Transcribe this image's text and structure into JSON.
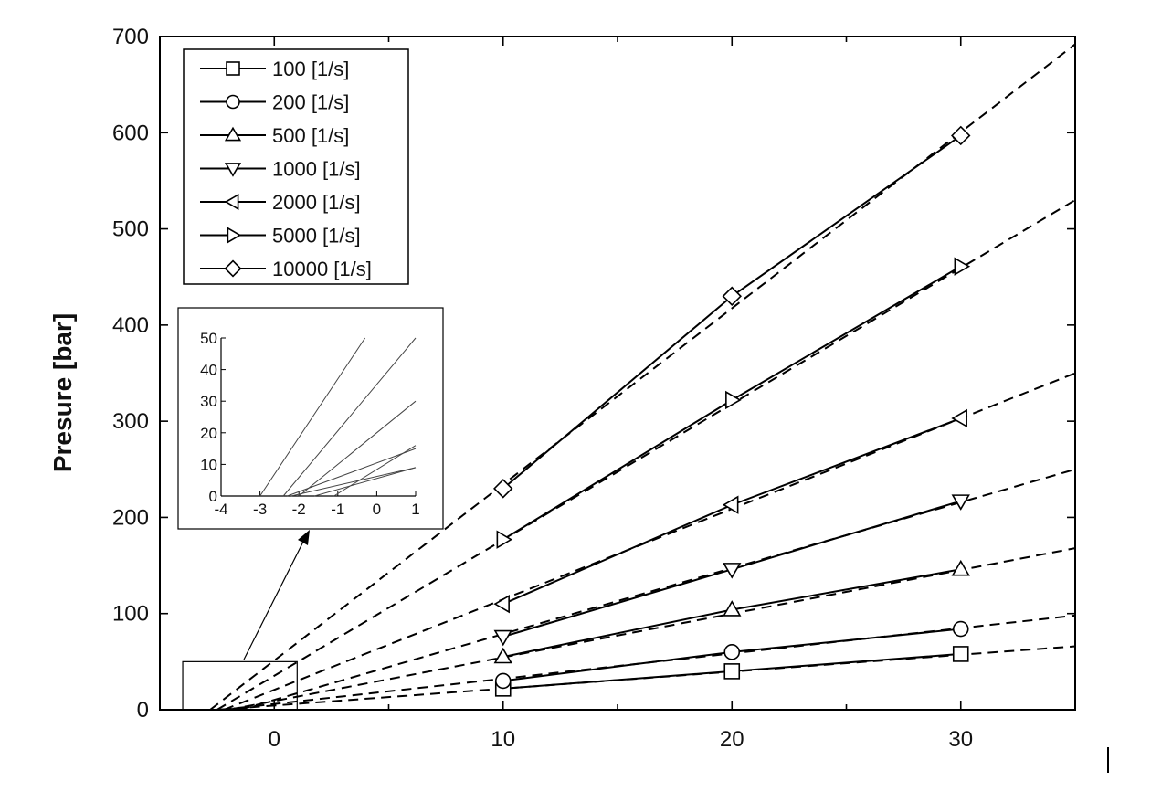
{
  "chart_data": [
    {
      "type": "line",
      "title": "",
      "xlabel": "",
      "ylabel": "Presure [bar]",
      "xlim": [
        -5,
        35
      ],
      "ylim": [
        0,
        700
      ],
      "xticks": [
        0,
        10,
        20,
        30
      ],
      "yticks": [
        0,
        100,
        200,
        300,
        400,
        500,
        600,
        700
      ],
      "x": [
        10,
        20,
        30
      ],
      "grid": false,
      "legend_position": "top-left",
      "series": [
        {
          "name": "100 [1/s]",
          "marker": "square",
          "values": [
            22,
            40,
            58
          ],
          "fit": {
            "x": [
              -2.5,
              35
            ],
            "y": [
              0,
              66
            ]
          }
        },
        {
          "name": "200 [1/s]",
          "marker": "circle",
          "values": [
            30,
            60,
            84
          ],
          "fit": {
            "x": [
              -2.3,
              35
            ],
            "y": [
              0,
              98
            ]
          }
        },
        {
          "name": "500 [1/s]",
          "marker": "triangle-up",
          "values": [
            55,
            104,
            146
          ],
          "fit": {
            "x": [
              -2.0,
              35
            ],
            "y": [
              0,
              168
            ]
          }
        },
        {
          "name": "1000 [1/s]",
          "marker": "triangle-down",
          "values": [
            76,
            146,
            217
          ],
          "fit": {
            "x": [
              -1.5,
              35
            ],
            "y": [
              0,
              250
            ]
          }
        },
        {
          "name": "2000 [1/s]",
          "marker": "triangle-left",
          "values": [
            110,
            213,
            303
          ],
          "fit": {
            "x": [
              -2.2,
              35
            ],
            "y": [
              0,
              350
            ]
          }
        },
        {
          "name": "5000 [1/s]",
          "marker": "triangle-right",
          "values": [
            177,
            322,
            461
          ],
          "fit": {
            "x": [
              -2.5,
              35
            ],
            "y": [
              0,
              530
            ]
          }
        },
        {
          "name": "10000 [1/s]",
          "marker": "diamond",
          "values": [
            230,
            430,
            597
          ],
          "fit": {
            "x": [
              -2.8,
              35
            ],
            "y": [
              0,
              692
            ]
          }
        }
      ]
    },
    {
      "type": "line",
      "title": "",
      "xlim": [
        -4,
        1
      ],
      "ylim": [
        0,
        50
      ],
      "xticks": [
        -4,
        -3,
        -2,
        -1,
        0,
        1
      ],
      "yticks": [
        0,
        10,
        20,
        30,
        40,
        50
      ],
      "zoom_region": {
        "x": [
          -4,
          1
        ],
        "y": [
          0,
          50
        ]
      },
      "lines": [
        {
          "x": [
            -3.0,
            -0.3
          ],
          "y": [
            0,
            50
          ]
        },
        {
          "x": [
            -2.4,
            1.0
          ],
          "y": [
            0,
            50
          ]
        },
        {
          "x": [
            -2.0,
            1.0
          ],
          "y": [
            0,
            30
          ]
        },
        {
          "x": [
            -2.3,
            1.0
          ],
          "y": [
            0,
            15
          ]
        },
        {
          "x": [
            -1.1,
            1.0
          ],
          "y": [
            0,
            16
          ]
        },
        {
          "x": [
            -1.6,
            1.0
          ],
          "y": [
            0,
            9
          ]
        },
        {
          "x": [
            -2.2,
            1.0
          ],
          "y": [
            0,
            9
          ]
        }
      ]
    }
  ]
}
